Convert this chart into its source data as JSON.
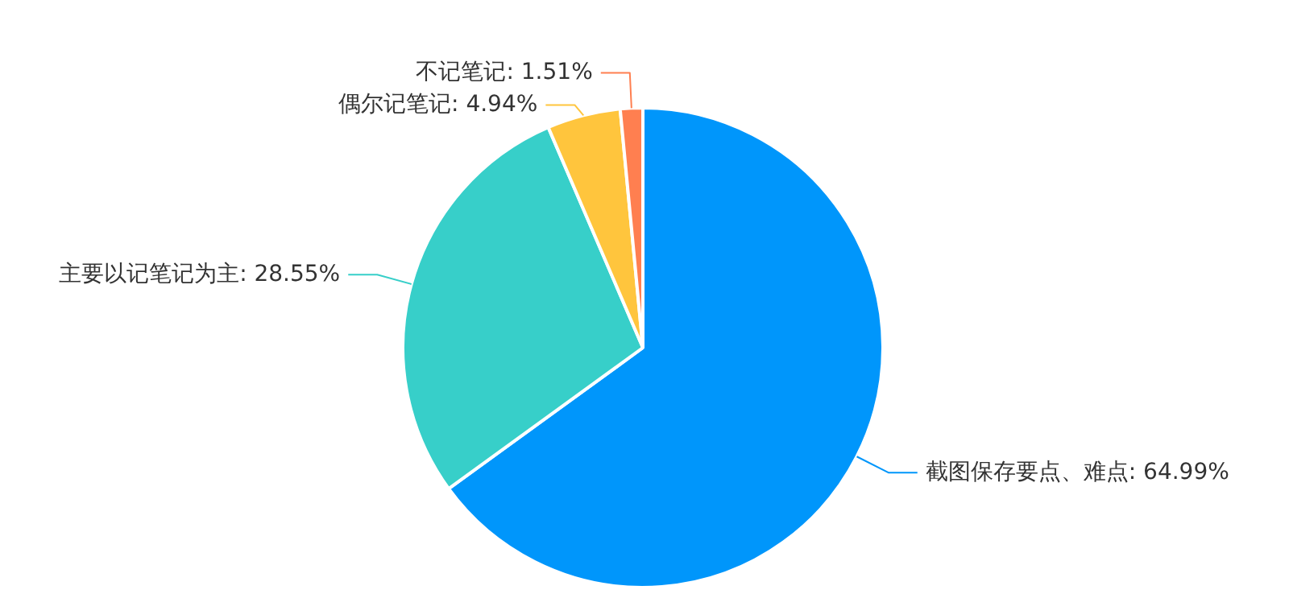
{
  "chart_data": {
    "type": "pie",
    "categories": [
      "截图保存要点、难点",
      "主要以记笔记为主",
      "偶尔记笔记",
      "不记笔记"
    ],
    "values": [
      64.99,
      28.55,
      4.94,
      1.51
    ],
    "value_labels": [
      "64.99%",
      "28.55%",
      "4.94%",
      "1.51%"
    ],
    "colors": [
      "#0096fb",
      "#37cfc9",
      "#ffc53d",
      "#ff7f50"
    ],
    "legend": false
  }
}
